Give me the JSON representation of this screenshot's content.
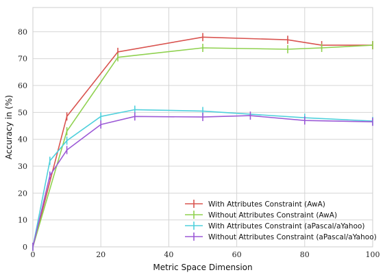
{
  "chart_data": {
    "type": "line",
    "xlabel": "Metric Space Dimension",
    "ylabel": "Accuracy in (%)",
    "xlim": [
      0,
      100
    ],
    "ylim": [
      0,
      89
    ],
    "xticks": [
      0,
      20,
      40,
      60,
      80,
      100
    ],
    "yticks": [
      0,
      10,
      20,
      30,
      40,
      50,
      60,
      70,
      80
    ],
    "grid": true,
    "legend_position": "bottom-right",
    "series": [
      {
        "name": "With Attributes Constraint (AwA)",
        "color": "#d9534f",
        "x": [
          0,
          10,
          25,
          50,
          75,
          85,
          100
        ],
        "y": [
          0,
          48.5,
          72.5,
          78,
          77,
          75,
          75
        ]
      },
      {
        "name": "Without Attributes Constraint (AwA)",
        "color": "#8fd14f",
        "x": [
          0,
          10,
          25,
          50,
          75,
          85,
          100
        ],
        "y": [
          0,
          43,
          70.5,
          74,
          73.5,
          74,
          75
        ]
      },
      {
        "name": "With Attributes Constraint (aPascal/aYahoo)",
        "color": "#4fd0dc",
        "x": [
          0,
          5,
          10,
          20,
          30,
          50,
          80,
          100
        ],
        "y": [
          0,
          32,
          39.5,
          48.5,
          51,
          50.5,
          48,
          46.8
        ]
      },
      {
        "name": "Without Attributes Constraint (aPascal/aYahoo)",
        "color": "#9b59d6",
        "x": [
          0,
          5,
          10,
          20,
          30,
          50,
          64,
          80,
          100
        ],
        "y": [
          0,
          26.5,
          36,
          45.5,
          48.5,
          48.3,
          48.8,
          47,
          46.5
        ]
      }
    ]
  }
}
